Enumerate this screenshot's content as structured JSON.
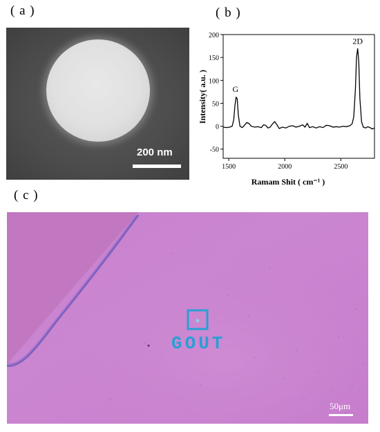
{
  "panels": {
    "a": {
      "label": "( a )",
      "scale_text": "200 nm"
    },
    "b": {
      "label": "( b )"
    },
    "c": {
      "label": "( c )",
      "scale_text": "50μm",
      "marker_text": "GOUT"
    }
  },
  "chart_data": {
    "type": "line",
    "title": "",
    "xlabel": "Ramam Shit ( cm⁻¹ )",
    "ylabel": "Intensity( a.u. )",
    "xlim": [
      1450,
      2800
    ],
    "ylim": [
      -70,
      200
    ],
    "xticks": [
      1500,
      2000,
      2500
    ],
    "yticks": [
      -50,
      0,
      50,
      100,
      150,
      200
    ],
    "annotations": [
      {
        "text": "G",
        "x": 1560,
        "y": 75
      },
      {
        "text": "2D",
        "x": 2650,
        "y": 180
      }
    ],
    "series": [
      {
        "x": [
          1450,
          1480,
          1510,
          1530,
          1545,
          1555,
          1565,
          1575,
          1585,
          1600,
          1620,
          1640,
          1660,
          1680,
          1700,
          1730,
          1760,
          1790,
          1810,
          1830,
          1850,
          1870,
          1890,
          1910,
          1930,
          1950,
          1980,
          2010,
          2040,
          2070,
          2100,
          2130,
          2160,
          2180,
          2200,
          2220,
          2250,
          2280,
          2310,
          2340,
          2370,
          2400,
          2430,
          2460,
          2490,
          2520,
          2550,
          2580,
          2600,
          2615,
          2630,
          2640,
          2650,
          2660,
          2670,
          2685,
          2700,
          2720,
          2740,
          2760,
          2780,
          2800
        ],
        "y": [
          -2,
          -3,
          -2,
          0,
          15,
          45,
          63,
          60,
          25,
          0,
          -3,
          2,
          8,
          6,
          0,
          -2,
          -1,
          -3,
          3,
          2,
          -4,
          -2,
          5,
          10,
          3,
          -5,
          -2,
          -4,
          0,
          1,
          -2,
          0,
          3,
          -2,
          6,
          -3,
          -1,
          -4,
          -1,
          -3,
          2,
          1,
          -2,
          -1,
          -2,
          0,
          -1,
          1,
          5,
          20,
          80,
          150,
          170,
          140,
          60,
          10,
          -2,
          -4,
          -1,
          -3,
          -6,
          -4
        ]
      }
    ]
  }
}
